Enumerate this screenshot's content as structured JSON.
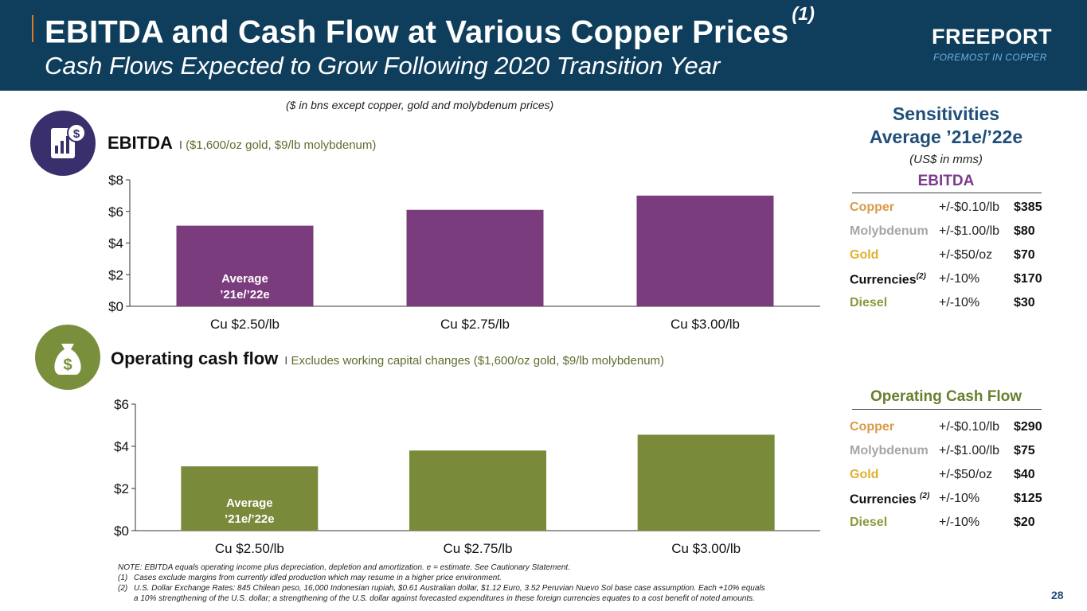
{
  "header": {
    "title": "EBITDA and Cash Flow at Various Copper Prices",
    "title_footnote": "(1)",
    "subtitle": "Cash Flows Expected to Grow Following 2020 Transition Year",
    "logo_word": "FREEPORT",
    "logo_tagline": "FOREMOST IN COPPER"
  },
  "units_note": "($ in bns except copper, gold and molybdenum prices)",
  "ebitda_section": {
    "title": "EBITDA",
    "separator": "I",
    "subtitle": "($1,600/oz gold, $9/lb molybdenum)",
    "icon": "dollar-chart-icon"
  },
  "ocf_section": {
    "title": "Operating cash flow",
    "separator": "I",
    "subtitle": "Excludes working capital changes ($1,600/oz gold, $9/lb molybdenum)",
    "icon": "money-bag-icon"
  },
  "chart_data": [
    {
      "type": "bar",
      "categories": [
        "Cu $2.50/lb",
        "Cu $2.75/lb",
        "Cu $3.00/lb"
      ],
      "values": [
        5.1,
        6.1,
        7.0
      ],
      "ylim": [
        0,
        8
      ],
      "yticks": [
        "$0",
        "$2",
        "$4",
        "$6",
        "$8"
      ],
      "ytick_values": [
        0,
        2,
        4,
        6,
        8
      ],
      "bar_annotation": [
        "Average",
        "’21e/’22e"
      ],
      "color": "#7b3c7d",
      "grid": false
    },
    {
      "type": "bar",
      "categories": [
        "Cu $2.50/lb",
        "Cu $2.75/lb",
        "Cu $3.00/lb"
      ],
      "values": [
        3.05,
        3.8,
        4.55
      ],
      "ylim": [
        0,
        6
      ],
      "yticks": [
        "$0",
        "$2",
        "$4",
        "$6"
      ],
      "ytick_values": [
        0,
        2,
        4,
        6
      ],
      "bar_annotation": [
        "Average",
        "’21e/’22e"
      ],
      "color": "#7a8a3b",
      "grid": false
    }
  ],
  "sensitivities": {
    "title_line1": "Sensitivities",
    "title_line2": "Average ’21e/’22e",
    "units": "(US$ in mms)",
    "ebitda_head": "EBITDA",
    "ocf_head": "Operating Cash Flow",
    "ebitda_rows": [
      {
        "name": "Copper",
        "footnote": "",
        "change": "+/-$0.10/lb",
        "value": "$385",
        "color": "#d99b4a"
      },
      {
        "name": "Molybdenum",
        "footnote": "",
        "change": "+/-$1.00/lb",
        "value": "$80",
        "color": "#a6a6a6"
      },
      {
        "name": "Gold",
        "footnote": "",
        "change": "+/-$50/oz",
        "value": "$70",
        "color": "#e0b02e"
      },
      {
        "name": "Currencies",
        "footnote": "(2)",
        "change": "+/-10%",
        "value": "$170",
        "color": "#111111"
      },
      {
        "name": "Diesel",
        "footnote": "",
        "change": "+/-10%",
        "value": "$30",
        "color": "#8a9a3a"
      }
    ],
    "ocf_rows": [
      {
        "name": "Copper",
        "footnote": "",
        "change": "+/-$0.10/lb",
        "value": "$290",
        "color": "#d99b4a"
      },
      {
        "name": "Molybdenum",
        "footnote": "",
        "change": "+/-$1.00/lb",
        "value": "$75",
        "color": "#a6a6a6"
      },
      {
        "name": "Gold",
        "footnote": "",
        "change": "+/-$50/oz",
        "value": "$40",
        "color": "#e0b02e"
      },
      {
        "name": "Currencies ",
        "footnote": "(2)",
        "change": "+/-10%",
        "value": "$125",
        "color": "#111111"
      },
      {
        "name": "Diesel",
        "footnote": "",
        "change": "+/-10%",
        "value": "$20",
        "color": "#8a9a3a"
      }
    ]
  },
  "notes": {
    "main": "NOTE: EBITDA equals operating income plus depreciation, depletion and amortization. e = estimate. See Cautionary Statement.",
    "fn1_num": "(1)",
    "fn1": "Cases exclude margins from currently idled production which may resume in a higher price environment.",
    "fn2_num": "(2)",
    "fn2_line1": "U.S. Dollar Exchange Rates: 845 Chilean peso, 16,000 Indonesian rupiah, $0.61 Australian dollar, $1.12 Euro, 3.52 Peruvian Nuevo Sol base case assumption. Each +10% equals",
    "fn2_line2": "a 10% strengthening of the U.S. dollar; a strengthening of the U.S. dollar against forecasted expenditures in these foreign currencies equates to a cost benefit of noted amounts."
  },
  "page_number": "28"
}
